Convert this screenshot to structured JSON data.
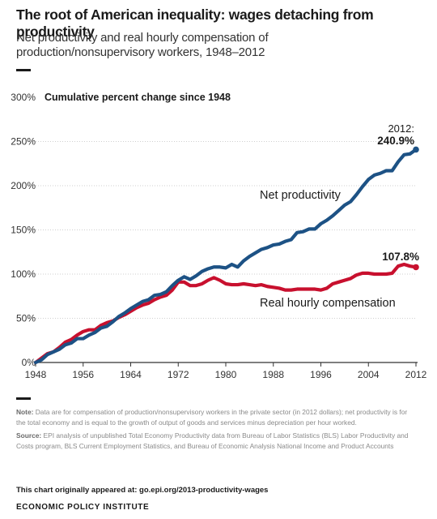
{
  "header": {
    "title": "The root of American inequality: wages detaching from productivity",
    "subtitle": "Net productivity and real hourly compensation of production/nonsupervisory workers, 1948–2012"
  },
  "chart_data": {
    "type": "line",
    "ylabel": "Cumulative percent change since 1948",
    "ylim": [
      0,
      300
    ],
    "yticks": [
      0,
      50,
      100,
      150,
      200,
      250,
      300
    ],
    "ytick_labels": [
      "0%",
      "50%",
      "100%",
      "150%",
      "200%",
      "250%",
      "300%"
    ],
    "xlim": [
      1948,
      2012
    ],
    "xticks": [
      1948,
      1956,
      1964,
      1972,
      1980,
      1988,
      1996,
      2004,
      2012
    ],
    "grid": "horizontal",
    "colors": {
      "productivity": "#1d5285",
      "compensation": "#c8102e",
      "grid": "#cfcfcf",
      "axis": "#333333"
    },
    "x": [
      1948,
      1949,
      1950,
      1951,
      1952,
      1953,
      1954,
      1955,
      1956,
      1957,
      1958,
      1959,
      1960,
      1961,
      1962,
      1963,
      1964,
      1965,
      1966,
      1967,
      1968,
      1969,
      1970,
      1971,
      1972,
      1973,
      1974,
      1975,
      1976,
      1977,
      1978,
      1979,
      1980,
      1981,
      1982,
      1983,
      1984,
      1985,
      1986,
      1987,
      1988,
      1989,
      1990,
      1991,
      1992,
      1993,
      1994,
      1995,
      1996,
      1997,
      1998,
      1999,
      2000,
      2001,
      2002,
      2003,
      2004,
      2005,
      2006,
      2007,
      2008,
      2009,
      2010,
      2011,
      2012
    ],
    "series": [
      {
        "name": "Net productivity",
        "values": [
          0,
          3,
          9,
          12,
          15,
          20,
          22,
          27,
          27,
          31,
          34,
          39,
          41,
          46,
          52,
          56,
          61,
          65,
          69,
          71,
          76,
          77,
          80,
          87,
          93,
          97,
          94,
          98,
          103,
          106,
          108,
          108,
          107,
          111,
          108,
          115,
          120,
          124,
          128,
          130,
          133,
          134,
          137,
          139,
          147,
          148,
          151,
          151,
          157,
          161,
          166,
          172,
          178,
          182,
          190,
          199,
          207,
          212,
          214,
          217,
          217,
          227,
          235,
          236,
          240.9
        ]
      },
      {
        "name": "Real hourly compensation",
        "values": [
          0,
          5,
          10,
          12,
          17,
          23,
          26,
          31,
          35,
          37,
          37,
          42,
          45,
          47,
          51,
          54,
          58,
          62,
          65,
          67,
          71,
          74,
          76,
          82,
          91,
          91,
          87,
          87,
          89,
          93,
          96,
          93,
          89,
          88,
          88,
          89,
          88,
          87,
          88,
          86,
          85,
          84,
          82,
          82,
          83,
          83,
          83,
          83,
          82,
          84,
          89,
          91,
          93,
          95,
          99,
          101,
          101,
          100,
          100,
          100,
          101,
          109,
          111,
          109,
          107.8
        ]
      }
    ],
    "annotations": {
      "productivity_label": "Net productivity",
      "compensation_label": "Real hourly compensation",
      "end_year_label": "2012:",
      "productivity_end": "240.9%",
      "compensation_end": "107.8%"
    }
  },
  "footer": {
    "note_label": "Note:",
    "note_text": "Data are for compensation of production/nonsupervisory workers in the private sector (in 2012 dollars); net productivity is for the total economy and is equal to the growth of output of goods and services minus depreciation per hour worked.",
    "source_label": "Source:",
    "source_text": "EPI analysis of unpublished Total Economy Productivity data from Bureau of Labor Statistics (BLS) Labor Productivity and Costs program, BLS Current Employment Statistics, and Bureau of Economic Analysis National Income and Product Accounts",
    "appeared_label": "This chart originally appeared at:",
    "appeared_url": "go.epi.org/2013-productivity-wages",
    "organization": "ECONOMIC POLICY INSTITUTE"
  }
}
